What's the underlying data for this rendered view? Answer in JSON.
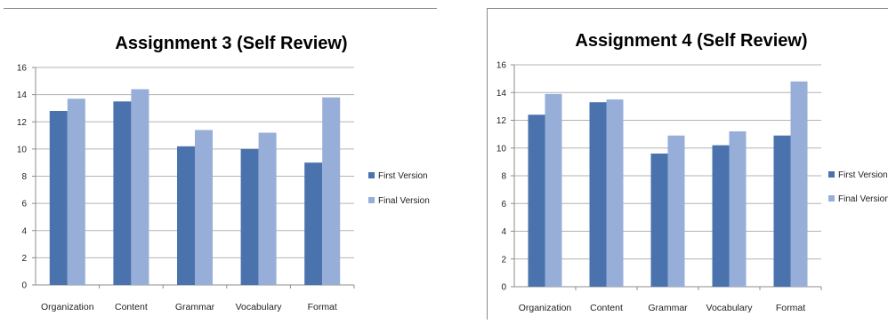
{
  "chart_data": [
    {
      "type": "bar",
      "title": "Assignment 3 (Self Review)",
      "categories": [
        "Organization",
        "Content",
        "Grammar",
        "Vocabulary",
        "Format"
      ],
      "series": [
        {
          "name": "First Version",
          "color": "#4a72ac",
          "values": [
            12.8,
            13.5,
            10.2,
            10.0,
            9.0
          ]
        },
        {
          "name": "Final Version",
          "color": "#96aed8",
          "values": [
            13.7,
            14.4,
            11.4,
            11.2,
            13.8
          ]
        }
      ],
      "ylim": [
        0,
        16
      ],
      "yticks": [
        "0",
        "2",
        "4",
        "6",
        "8",
        "10",
        "12",
        "14",
        "16"
      ],
      "grid": true,
      "legend": "right"
    },
    {
      "type": "bar",
      "title": "Assignment 4 (Self Review)",
      "categories": [
        "Organization",
        "Content",
        "Grammar",
        "Vocabulary",
        "Format"
      ],
      "series": [
        {
          "name": "First Version",
          "color": "#4a72ac",
          "values": [
            12.4,
            13.3,
            9.6,
            10.2,
            10.9
          ]
        },
        {
          "name": "Final Version",
          "color": "#96aed8",
          "values": [
            13.9,
            13.5,
            10.9,
            11.2,
            14.8
          ]
        }
      ],
      "ylim": [
        0,
        16
      ],
      "yticks": [
        "0",
        "2",
        "4",
        "6",
        "8",
        "10",
        "12",
        "14",
        "16"
      ],
      "grid": true,
      "legend": "right"
    }
  ]
}
